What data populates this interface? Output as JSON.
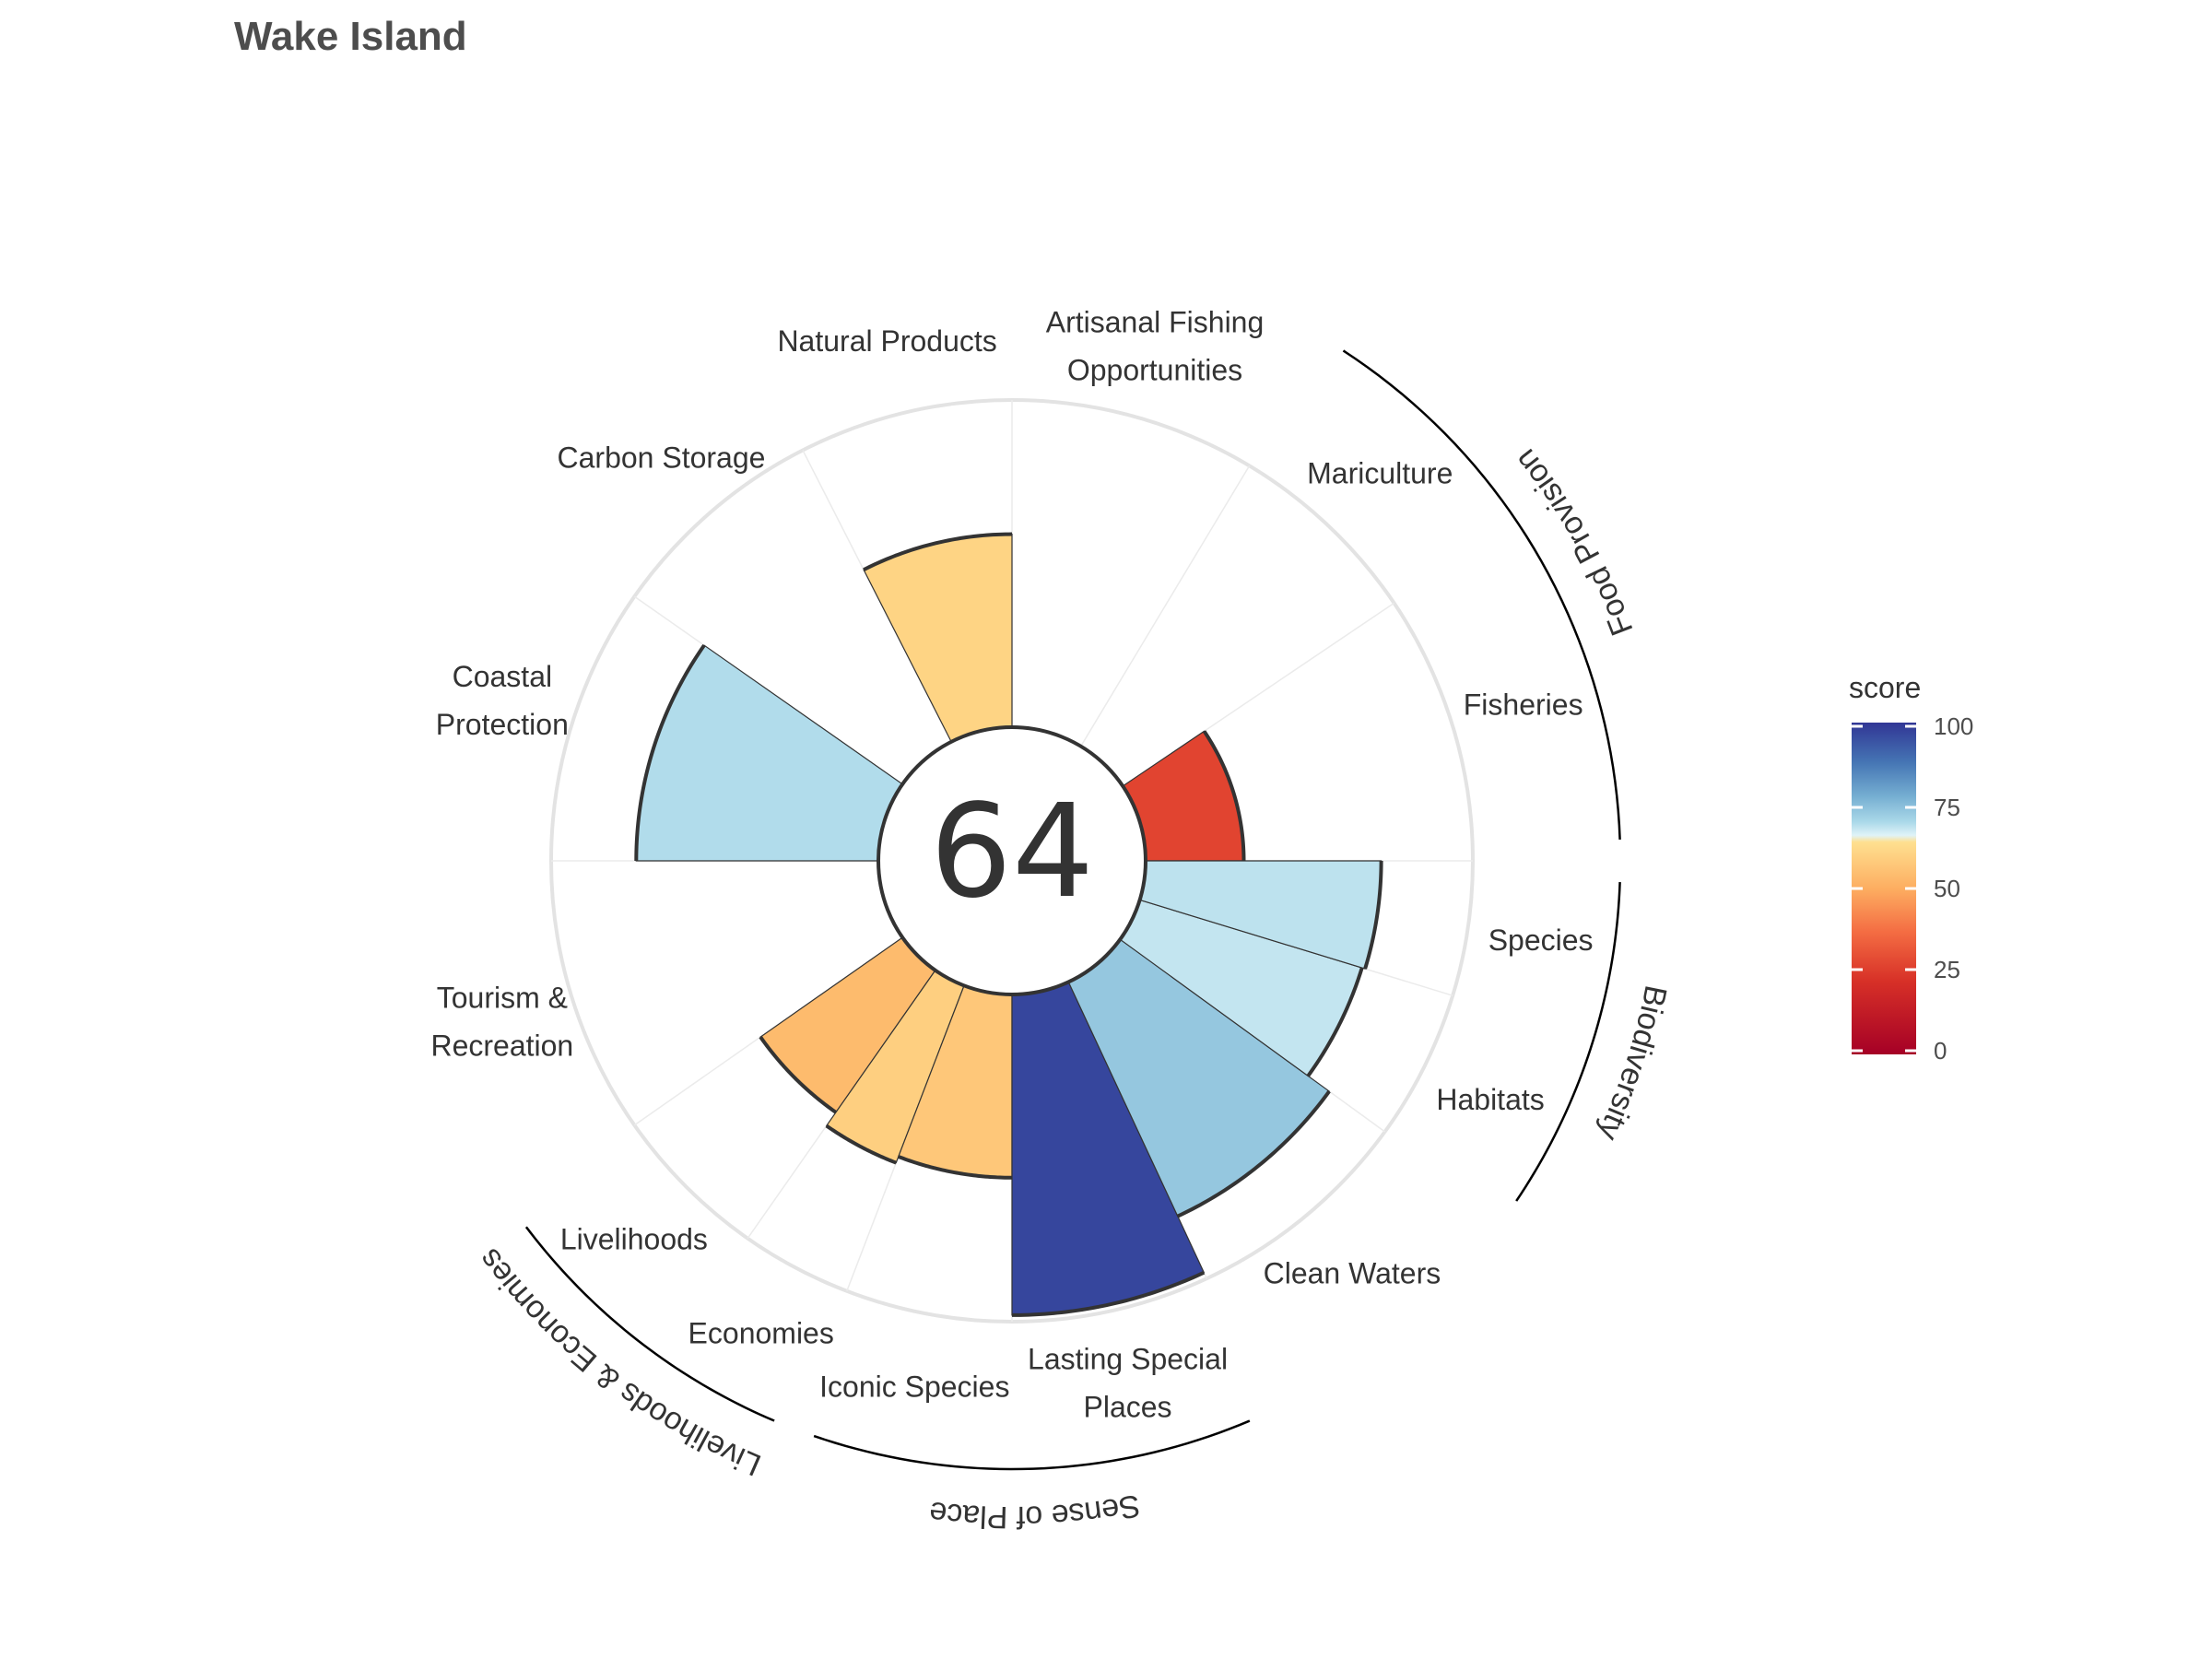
{
  "chart_data": {
    "type": "polar-bar",
    "title": "Wake Island",
    "center_score": "64",
    "scale_max": 100,
    "na_color": "#cccccc",
    "goals": [
      {
        "label": "Fisheries",
        "score": 30,
        "na": false,
        "start_deg": 90,
        "end_deg": 124
      },
      {
        "label": "Mariculture",
        "score": null,
        "na": true,
        "start_deg": 124,
        "end_deg": 149
      },
      {
        "label": "Artisanal Fishing Opportunities",
        "score": null,
        "na": true,
        "start_deg": 149,
        "end_deg": 180
      },
      {
        "label": "Natural Products",
        "score": 59,
        "na": false,
        "start_deg": 180,
        "end_deg": 207
      },
      {
        "label": "Carbon Storage",
        "score": null,
        "na": true,
        "start_deg": 207,
        "end_deg": 235
      },
      {
        "label": "Coastal Protection",
        "score": 74,
        "na": false,
        "start_deg": 235,
        "end_deg": 270
      },
      {
        "label": "Tourism & Recreation",
        "score": null,
        "na": true,
        "start_deg": 270,
        "end_deg": 305
      },
      {
        "label": "Livelihoods",
        "score": 53,
        "na": false,
        "start_deg": 305,
        "end_deg": 325
      },
      {
        "label": "Economies",
        "score": 58,
        "na": false,
        "start_deg": 325,
        "end_deg": 339
      },
      {
        "label": "Iconic Species",
        "score": 56,
        "na": false,
        "start_deg": 339,
        "end_deg": 360
      },
      {
        "label": "Lasting Special Places",
        "score": 98,
        "na": false,
        "start_deg": 0,
        "end_deg": 25
      },
      {
        "label": "Clean Waters",
        "score": 79,
        "na": false,
        "start_deg": 25,
        "end_deg": 54
      },
      {
        "label": "Habitats",
        "score": 71,
        "na": false,
        "start_deg": 54,
        "end_deg": 73
      },
      {
        "label": "Species",
        "score": 72,
        "na": false,
        "start_deg": 73,
        "end_deg": 90
      }
    ],
    "groups": [
      {
        "label": "Food Provision",
        "start_deg": 90,
        "end_deg": 149
      },
      {
        "label": "Biodiversity",
        "start_deg": 54,
        "end_deg": 90
      },
      {
        "label": "Sense of Place",
        "start_deg": 339,
        "end_deg": 385
      },
      {
        "label": "Livelihoods & Economies",
        "start_deg": 305,
        "end_deg": 339
      }
    ],
    "legend": {
      "title": "score",
      "ticks": [
        "100",
        "75",
        "50",
        "25",
        "0"
      ],
      "colors": [
        "#313695",
        "#4575b4",
        "#74add1",
        "#abd9e9",
        "#e0f3f8",
        "#fee090",
        "#fdae61",
        "#f46d43",
        "#d73027",
        "#a50026"
      ]
    }
  }
}
